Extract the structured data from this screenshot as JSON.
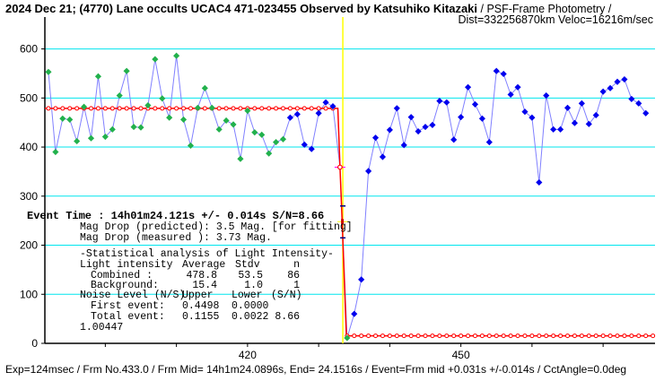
{
  "header": {
    "title": "2024 Dec 21; (4770) Lane occults UCAC4 471-023455 Observed by Katsuhiko Kitazaki",
    "method": " / PSF-Frame Photometry /",
    "dist_veloc": "Dist=332256870km Veloc=16216m/sec"
  },
  "footer": "Exp=124msec / Frm No.433.0 / Frm Mid= 14h1m24.0896s,  End= 24.1516s / Event=Frm mid +0.031s +/-0.014s / CctAngle=0.0deg",
  "stats": {
    "event_time": "Event Time : 14h01m24.121s  +/- 0.014s  S/N=8.66",
    "mag_pred": "Mag Drop (predicted):  3.5   Mag. [for fitting]",
    "mag_meas": "Mag Drop (measured ):  3.73  Mag.",
    "heading": "-Statistical analysis of Light Intensity-",
    "col_label": "Light intensity",
    "col_avg": "Average",
    "col_stdv": "Stdv",
    "col_n": "n",
    "combined_label": "Combined  :",
    "combined_avg": "478.8",
    "combined_stdv": "53.5",
    "combined_n": "86",
    "bg_label": "Background:",
    "bg_avg": "15.4",
    "bg_stdv": "1.0",
    "bg_n": "1",
    "noise_label": "Noise Level (N/S)",
    "noise_upper": "Upper",
    "noise_lower": "Lower",
    "noise_sn": "(S/N)",
    "first_label": "First event:",
    "first_upper": "0.4498",
    "first_lower": "0.0000",
    "total_label": "Total event:",
    "total_upper": "0.1155",
    "total_lower": "0.0022",
    "total_sn": "8.66",
    "ratio": "1.00447"
  },
  "chart_data": {
    "type": "line",
    "xlabel": "",
    "ylabel": "",
    "xlim": [
      391.5,
      477.3
    ],
    "ylim": [
      0,
      665
    ],
    "yticks": [
      0,
      100,
      200,
      300,
      400,
      500,
      600
    ],
    "xticks_minor": [
      400,
      410,
      420,
      430,
      440,
      450,
      460,
      470
    ],
    "xtick_labels": [
      420,
      450
    ],
    "event_frame": 433.4,
    "colors": {
      "green": "#22b14c",
      "blue": "#0000ee",
      "line": "#8080ff",
      "fit": "#ff0000",
      "grid": "#00e5ee",
      "event": "#ffff00",
      "cross": "#ff00ff"
    },
    "x": [
      392,
      393,
      394,
      395,
      396,
      397,
      398,
      399,
      400,
      401,
      402,
      403,
      404,
      405,
      406,
      407,
      408,
      409,
      410,
      411,
      412,
      413,
      414,
      415,
      416,
      417,
      418,
      419,
      420,
      421,
      422,
      423,
      424,
      425,
      426,
      427,
      428,
      429,
      430,
      431,
      432,
      433,
      434,
      435,
      436,
      437,
      438,
      439,
      440,
      441,
      442,
      443,
      444,
      445,
      446,
      447,
      448,
      449,
      450,
      451,
      452,
      453,
      454,
      455,
      456,
      457,
      458,
      459,
      460,
      461,
      462,
      463,
      464,
      465,
      466,
      467,
      468,
      469,
      470,
      471,
      472,
      473,
      474,
      475,
      476
    ],
    "y": [
      553,
      390,
      458,
      456,
      412,
      482,
      418,
      544,
      421,
      436,
      505,
      555,
      441,
      440,
      485,
      579,
      499,
      460,
      586,
      456,
      403,
      480,
      520,
      480,
      436,
      454,
      446,
      376,
      474,
      430,
      425,
      387,
      410,
      416,
      460,
      467,
      405,
      396,
      469,
      491,
      483,
      359,
      11,
      60,
      130,
      351,
      419,
      380,
      435,
      479,
      404,
      461,
      432,
      441,
      445,
      494,
      491,
      415,
      461,
      522,
      487,
      458,
      410,
      555,
      549,
      507,
      522,
      472,
      460,
      328,
      505,
      436,
      436,
      480,
      449,
      489,
      447,
      465,
      513,
      520,
      533,
      538,
      498,
      489,
      469
    ],
    "green_frames": [
      392,
      393,
      394,
      395,
      396,
      397,
      398,
      399,
      400,
      401,
      402,
      403,
      404,
      405,
      406,
      407,
      408,
      409,
      410,
      411,
      412,
      413,
      414,
      415,
      416,
      417,
      418,
      419,
      420,
      421,
      422,
      423,
      424,
      425,
      434
    ],
    "fit": {
      "high": 478.8,
      "low": 15.4,
      "points": [
        [
          391.5,
          478.8
        ],
        [
          432.7,
          478.8
        ],
        [
          433,
          359
        ],
        [
          433.3,
          250
        ],
        [
          433.9,
          15.4
        ],
        [
          477.3,
          15.4
        ]
      ]
    }
  }
}
